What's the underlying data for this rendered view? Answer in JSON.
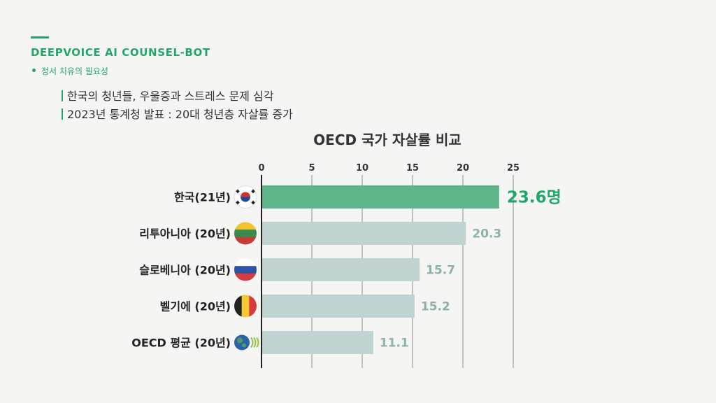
{
  "brand": {
    "name": "DEEPVOICE AI COUNSEL-BOT",
    "topic": "정서 치유의 필요성"
  },
  "headlines": [
    "한국의 청년들, 우울증과 스트레스 문제 심각",
    "2023년 통계청 발표 : 20대 청년층 자살률 증가"
  ],
  "colors": {
    "accent": "#23a66b",
    "highlight_bar": "#5fb58a",
    "bar": "#c0d3d1",
    "value_text": "#8fb0ab",
    "grid": "#8a8a8a"
  },
  "chart_data": {
    "type": "bar",
    "orientation": "horizontal",
    "title": "OECD 국가 자살률 비교",
    "xlim": [
      0,
      25
    ],
    "x_ticks": [
      "0",
      "5",
      "10",
      "15",
      "20",
      "25"
    ],
    "grid": true,
    "categories": [
      "한국(21년)",
      "리투아니아 (20년)",
      "슬로베니아 (20년)",
      "벨기에 (20년)",
      "OECD 평균 (20년)"
    ],
    "flag_icons": [
      "korea-flag-icon",
      "lithuania-flag-icon",
      "slovenia-flag-icon",
      "belgium-flag-icon",
      "oecd-logo-icon"
    ],
    "values": [
      23.6,
      20.3,
      15.7,
      15.2,
      11.1
    ],
    "value_labels": [
      "23.6명",
      "20.3",
      "15.7",
      "15.2",
      "11.1"
    ],
    "highlight_index": 0
  }
}
